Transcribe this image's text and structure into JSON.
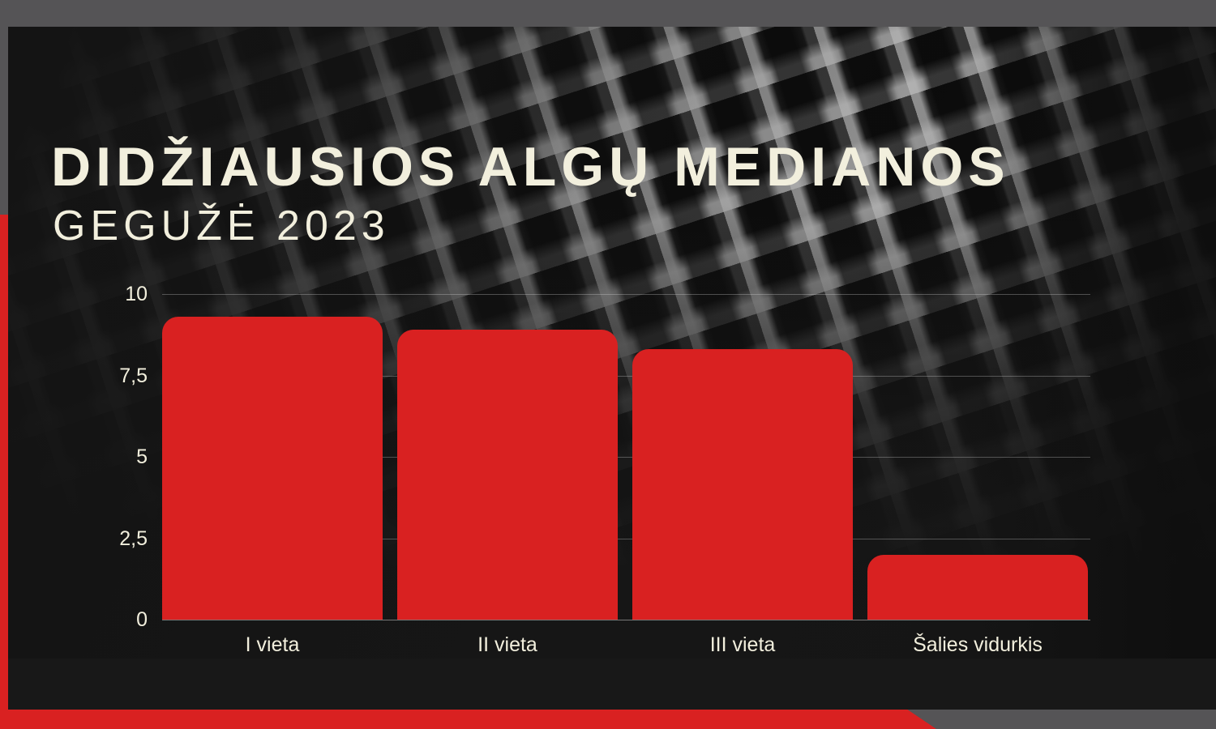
{
  "header": {
    "title": "DIDŽIAUSIOS ALGŲ MEDIANOS",
    "subtitle": "GEGUŽĖ 2023"
  },
  "colors": {
    "accent_red": "#d92121",
    "frame_gray": "#555456",
    "card_background": "#181818",
    "text_cream": "#f2efdd",
    "gridline": "rgba(225,225,225,0.3)"
  },
  "chart_data": {
    "type": "bar",
    "title": "DIDŽIAUSIOS ALGŲ MEDIANOS",
    "subtitle": "GEGUŽĖ 2023",
    "categories": [
      "I vieta",
      "II vieta",
      "III vieta",
      "Šalies vidurkis"
    ],
    "values": [
      9.3,
      8.9,
      8.3,
      2.0
    ],
    "bar_color": "#d92121",
    "xlabel": "",
    "ylabel": "",
    "ylim": [
      0,
      10
    ],
    "yticks": [
      0,
      2.5,
      5,
      7.5,
      10
    ],
    "ytick_labels": [
      "0",
      "2,5",
      "5",
      "7,5",
      "10"
    ],
    "grid": true,
    "legend": false
  }
}
